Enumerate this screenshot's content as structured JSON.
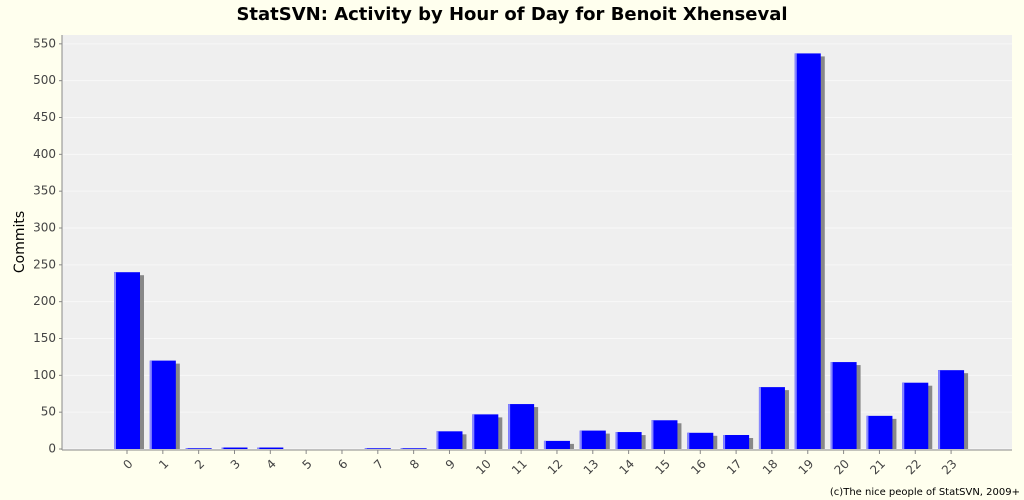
{
  "chart_data": {
    "type": "bar",
    "title": "StatSVN: Activity by Hour of Day for Benoit Xhenseval",
    "y_label": "Commits",
    "footer": "(c)The nice people of StatSVN, 2009+",
    "categories": [
      "0",
      "1",
      "2",
      "3",
      "4",
      "5",
      "6",
      "7",
      "8",
      "9",
      "10",
      "11",
      "12",
      "13",
      "14",
      "15",
      "16",
      "17",
      "18",
      "19",
      "20",
      "21",
      "22",
      "23"
    ],
    "values": [
      240,
      120,
      1,
      2,
      2,
      0,
      0,
      1,
      1,
      24,
      47,
      61,
      11,
      25,
      23,
      39,
      22,
      19,
      84,
      537,
      118,
      45,
      90,
      107
    ],
    "color": "#0000ff",
    "ylim": [
      0,
      562
    ],
    "yticks": [
      0,
      50,
      100,
      150,
      200,
      250,
      300,
      350,
      400,
      450,
      500,
      550
    ],
    "grid": true
  }
}
